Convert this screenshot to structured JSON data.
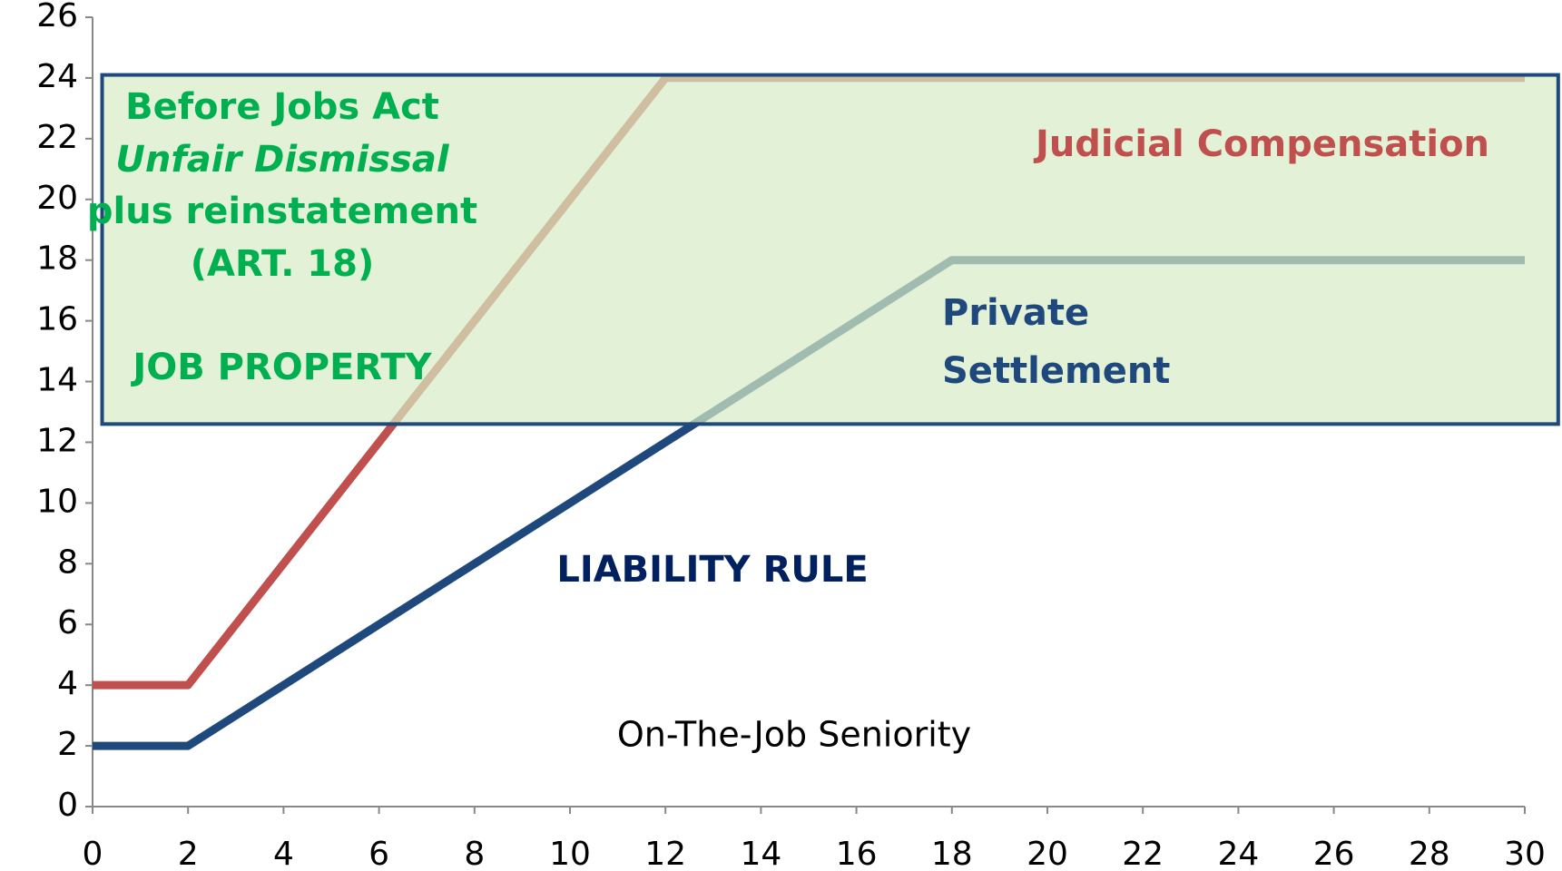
{
  "chart_data": {
    "type": "line",
    "x": [
      0,
      2,
      12,
      18,
      30
    ],
    "series": [
      {
        "color": "#c0504d",
        "values": [
          4,
          4,
          24,
          24,
          24
        ]
      },
      {
        "color": "#1f497d",
        "values": [
          2,
          2,
          12,
          18,
          18
        ]
      }
    ],
    "xlim": [
      0,
      30
    ],
    "xticks": [
      0,
      2,
      4,
      6,
      8,
      10,
      12,
      14,
      16,
      18,
      20,
      22,
      24,
      26,
      28,
      30
    ],
    "ylim": [
      0,
      26
    ],
    "yticks": [
      0,
      2,
      4,
      6,
      8,
      10,
      12,
      14,
      16,
      18,
      20,
      22,
      24,
      26
    ],
    "shaded_region": {
      "xlim": [
        0.2,
        30.7
      ],
      "ylim": [
        12.6,
        24.1
      ],
      "color": "#d7edc4",
      "border": "#1f497d"
    },
    "annotations": [
      {
        "text": "Before Jobs Act",
        "color": "#00b050",
        "bold": true
      },
      {
        "text": "Unfair Dismissal",
        "color": "#00b050",
        "bold": true,
        "italic": true
      },
      {
        "text": "plus reinstatement",
        "color": "#00b050",
        "bold": true
      },
      {
        "text": "(ART. 18)",
        "color": "#00b050",
        "bold": true
      },
      {
        "text": "JOB PROPERTY",
        "color": "#00b050",
        "bold": true
      },
      {
        "text": "Judicial Compensation",
        "color": "#c0504d",
        "bold": true
      },
      {
        "text": "Private",
        "color": "#1f497d",
        "bold": true
      },
      {
        "text": "Settlement",
        "color": "#1f497d",
        "bold": true
      },
      {
        "text": "LIABILITY RULE",
        "color": "#002060",
        "bold": true
      },
      {
        "text": "On-The-Job Seniority",
        "color": "#000000",
        "bold": false
      }
    ]
  }
}
